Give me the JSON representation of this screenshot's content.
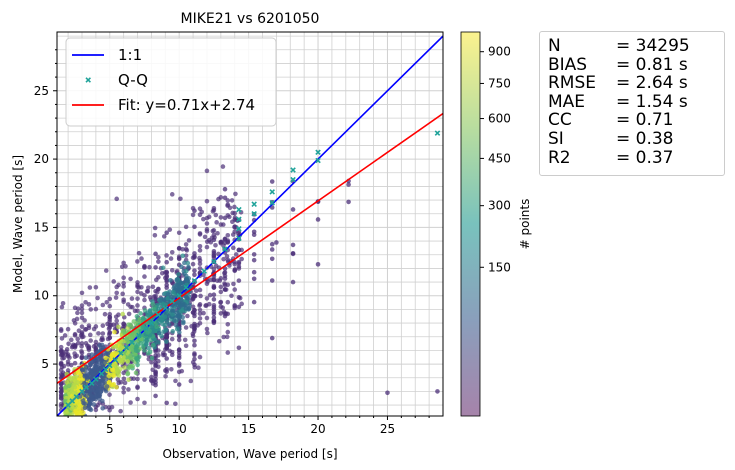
{
  "chart_data": {
    "type": "scatter",
    "title": "MIKE21 vs 6201050",
    "xlabel": "Observation, Wave period [s]",
    "ylabel": "Model, Wave period [s]",
    "xlim": [
      1.2,
      29.0
    ],
    "ylim": [
      1.2,
      29.3
    ],
    "xticks": [
      5,
      10,
      15,
      20,
      25
    ],
    "yticks": [
      5,
      10,
      15,
      20,
      25
    ],
    "grid": true,
    "legend_position": "top-left",
    "legend": [
      {
        "label": "1:1",
        "color": "#0000ff",
        "kind": "line"
      },
      {
        "label": "Q-Q",
        "color": "#20a39a",
        "kind": "marker"
      },
      {
        "label": "Fit: y=0.71x+2.74",
        "color": "#ff0000",
        "kind": "line"
      }
    ],
    "one_to_one": {
      "slope": 1,
      "intercept": 0
    },
    "fit": {
      "slope": 0.71,
      "intercept": 2.74
    },
    "qq_points": [
      [
        2.0,
        2.0
      ],
      [
        2.3,
        2.3
      ],
      [
        2.6,
        2.6
      ],
      [
        3.0,
        3.0
      ],
      [
        3.3,
        3.3
      ],
      [
        3.7,
        3.6
      ],
      [
        4.0,
        3.9
      ],
      [
        4.4,
        4.3
      ],
      [
        4.7,
        4.6
      ],
      [
        5.0,
        4.9
      ],
      [
        5.4,
        5.3
      ],
      [
        5.8,
        5.8
      ],
      [
        6.2,
        6.2
      ],
      [
        6.6,
        6.6
      ],
      [
        7.1,
        7.1
      ],
      [
        7.6,
        7.6
      ],
      [
        8.0,
        8.0
      ],
      [
        8.5,
        8.6
      ],
      [
        9.0,
        9.1
      ],
      [
        9.5,
        9.6
      ],
      [
        10.0,
        10.0
      ],
      [
        10.5,
        10.6
      ],
      [
        11.1,
        11.1
      ],
      [
        11.8,
        11.8
      ],
      [
        12.5,
        12.5
      ],
      [
        13.3,
        13.4
      ],
      [
        14.3,
        14.2
      ],
      [
        14.3,
        14.9
      ],
      [
        14.3,
        15.6
      ],
      [
        14.3,
        16.3
      ],
      [
        15.4,
        16.0
      ],
      [
        15.4,
        16.7
      ],
      [
        16.7,
        16.8
      ],
      [
        16.7,
        17.6
      ],
      [
        18.2,
        18.5
      ],
      [
        18.2,
        19.2
      ],
      [
        20.0,
        19.9
      ],
      [
        20.0,
        20.5
      ],
      [
        28.6,
        21.9
      ]
    ],
    "colorbar": {
      "label": "# points",
      "ticks": [
        150,
        300,
        450,
        600,
        750,
        900
      ],
      "range": [
        0,
        1000
      ],
      "scale": "sqrt",
      "colormap": "viridis"
    },
    "point_cloud_summary": "dense cloud near 1:1 from 2 to 13 s, scattered outliers up to 20 s"
  },
  "stats": [
    {
      "name": "N",
      "value": "= 34295"
    },
    {
      "name": "BIAS",
      "value": "= 0.81 s"
    },
    {
      "name": "RMSE",
      "value": "= 2.64 s"
    },
    {
      "name": "MAE",
      "value": "= 1.54 s"
    },
    {
      "name": "CC",
      "value": "= 0.71"
    },
    {
      "name": "SI",
      "value": "= 0.38"
    },
    {
      "name": "R2",
      "value": "= 0.37"
    }
  ]
}
